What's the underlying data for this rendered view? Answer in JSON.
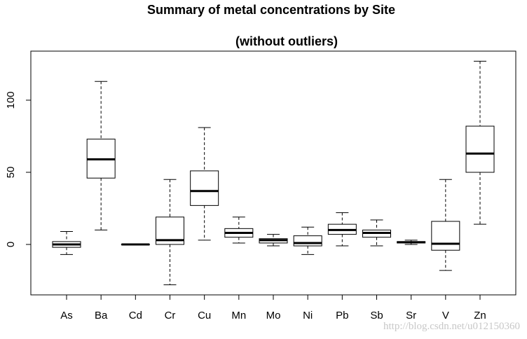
{
  "chart_data": {
    "type": "boxplot",
    "title": "Summary of metal concentrations by Site",
    "subtitle": "(without outliers)",
    "xlabel": "",
    "ylabel": "",
    "ylim": [
      -35,
      132
    ],
    "yticks": [
      0,
      50,
      100
    ],
    "categories": [
      "As",
      "Ba",
      "Cd",
      "Cr",
      "Cu",
      "Mn",
      "Mo",
      "Ni",
      "Pb",
      "Sb",
      "Sr",
      "V",
      "Zn"
    ],
    "series": [
      {
        "name": "As",
        "whisker_low": -7,
        "q1": -2,
        "median": 0,
        "q3": 2,
        "whisker_high": 9
      },
      {
        "name": "Ba",
        "whisker_low": 10,
        "q1": 46,
        "median": 59,
        "q3": 73,
        "whisker_high": 113
      },
      {
        "name": "Cd",
        "whisker_low": 0,
        "q1": 0,
        "median": 0,
        "q3": 0,
        "whisker_high": 0
      },
      {
        "name": "Cr",
        "whisker_low": -28,
        "q1": 0,
        "median": 3,
        "q3": 19,
        "whisker_high": 45
      },
      {
        "name": "Cu",
        "whisker_low": 3,
        "q1": 27,
        "median": 37,
        "q3": 51,
        "whisker_high": 81
      },
      {
        "name": "Mn",
        "whisker_low": 1,
        "q1": 5,
        "median": 8,
        "q3": 11,
        "whisker_high": 19
      },
      {
        "name": "Mo",
        "whisker_low": -1,
        "q1": 1,
        "median": 3,
        "q3": 4,
        "whisker_high": 7
      },
      {
        "name": "Ni",
        "whisker_low": -7,
        "q1": -1,
        "median": 1,
        "q3": 6,
        "whisker_high": 12
      },
      {
        "name": "Pb",
        "whisker_low": -1,
        "q1": 7,
        "median": 10,
        "q3": 14,
        "whisker_high": 22
      },
      {
        "name": "Sb",
        "whisker_low": -1,
        "q1": 5,
        "median": 8,
        "q3": 10,
        "whisker_high": 17
      },
      {
        "name": "Sr",
        "whisker_low": 0,
        "q1": 1,
        "median": 1.5,
        "q3": 2,
        "whisker_high": 3
      },
      {
        "name": "V",
        "whisker_low": -18,
        "q1": -4,
        "median": 0.5,
        "q3": 16,
        "whisker_high": 45
      },
      {
        "name": "Zn",
        "whisker_low": 14,
        "q1": 50,
        "median": 63,
        "q3": 82,
        "whisker_high": 127
      }
    ],
    "grid": false,
    "legend": "none"
  },
  "watermark": "http://blog.csdn.net/u012150360"
}
